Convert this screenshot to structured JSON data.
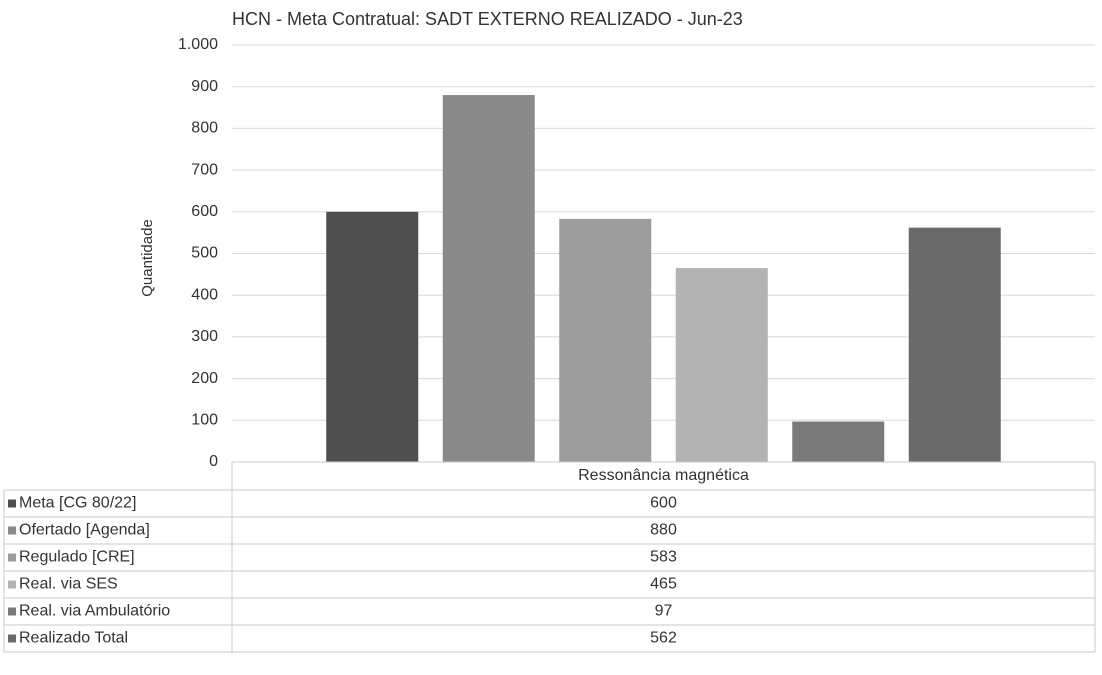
{
  "chart_data": {
    "type": "bar",
    "title": "HCN - Meta Contratual: SADT EXTERNO REALIZADO - Jun-23",
    "y_label": "Quantidade",
    "categories": [
      "Ressonância magnética"
    ],
    "series": [
      {
        "name": "Meta [CG 80/22]",
        "color": "#4f4f4f",
        "values": [
          600
        ]
      },
      {
        "name": "Ofertado [Agenda]",
        "color": "#8a8a8a",
        "values": [
          880
        ]
      },
      {
        "name": "Regulado [CRE]",
        "color": "#9c9c9c",
        "values": [
          583
        ]
      },
      {
        "name": "Real. via SES",
        "color": "#b3b3b3",
        "values": [
          465
        ]
      },
      {
        "name": "Real. via Ambulatório",
        "color": "#7a7a7a",
        "values": [
          97
        ]
      },
      {
        "name": "Realizado Total",
        "color": "#6a6a6a",
        "values": [
          562
        ]
      }
    ],
    "ylim": [
      0,
      1000
    ],
    "yticks": [
      0,
      100,
      200,
      300,
      400,
      500,
      600,
      700,
      800,
      900,
      {
        "value": 1000,
        "label": "1.000"
      }
    ],
    "grid": true,
    "data_table": true
  }
}
